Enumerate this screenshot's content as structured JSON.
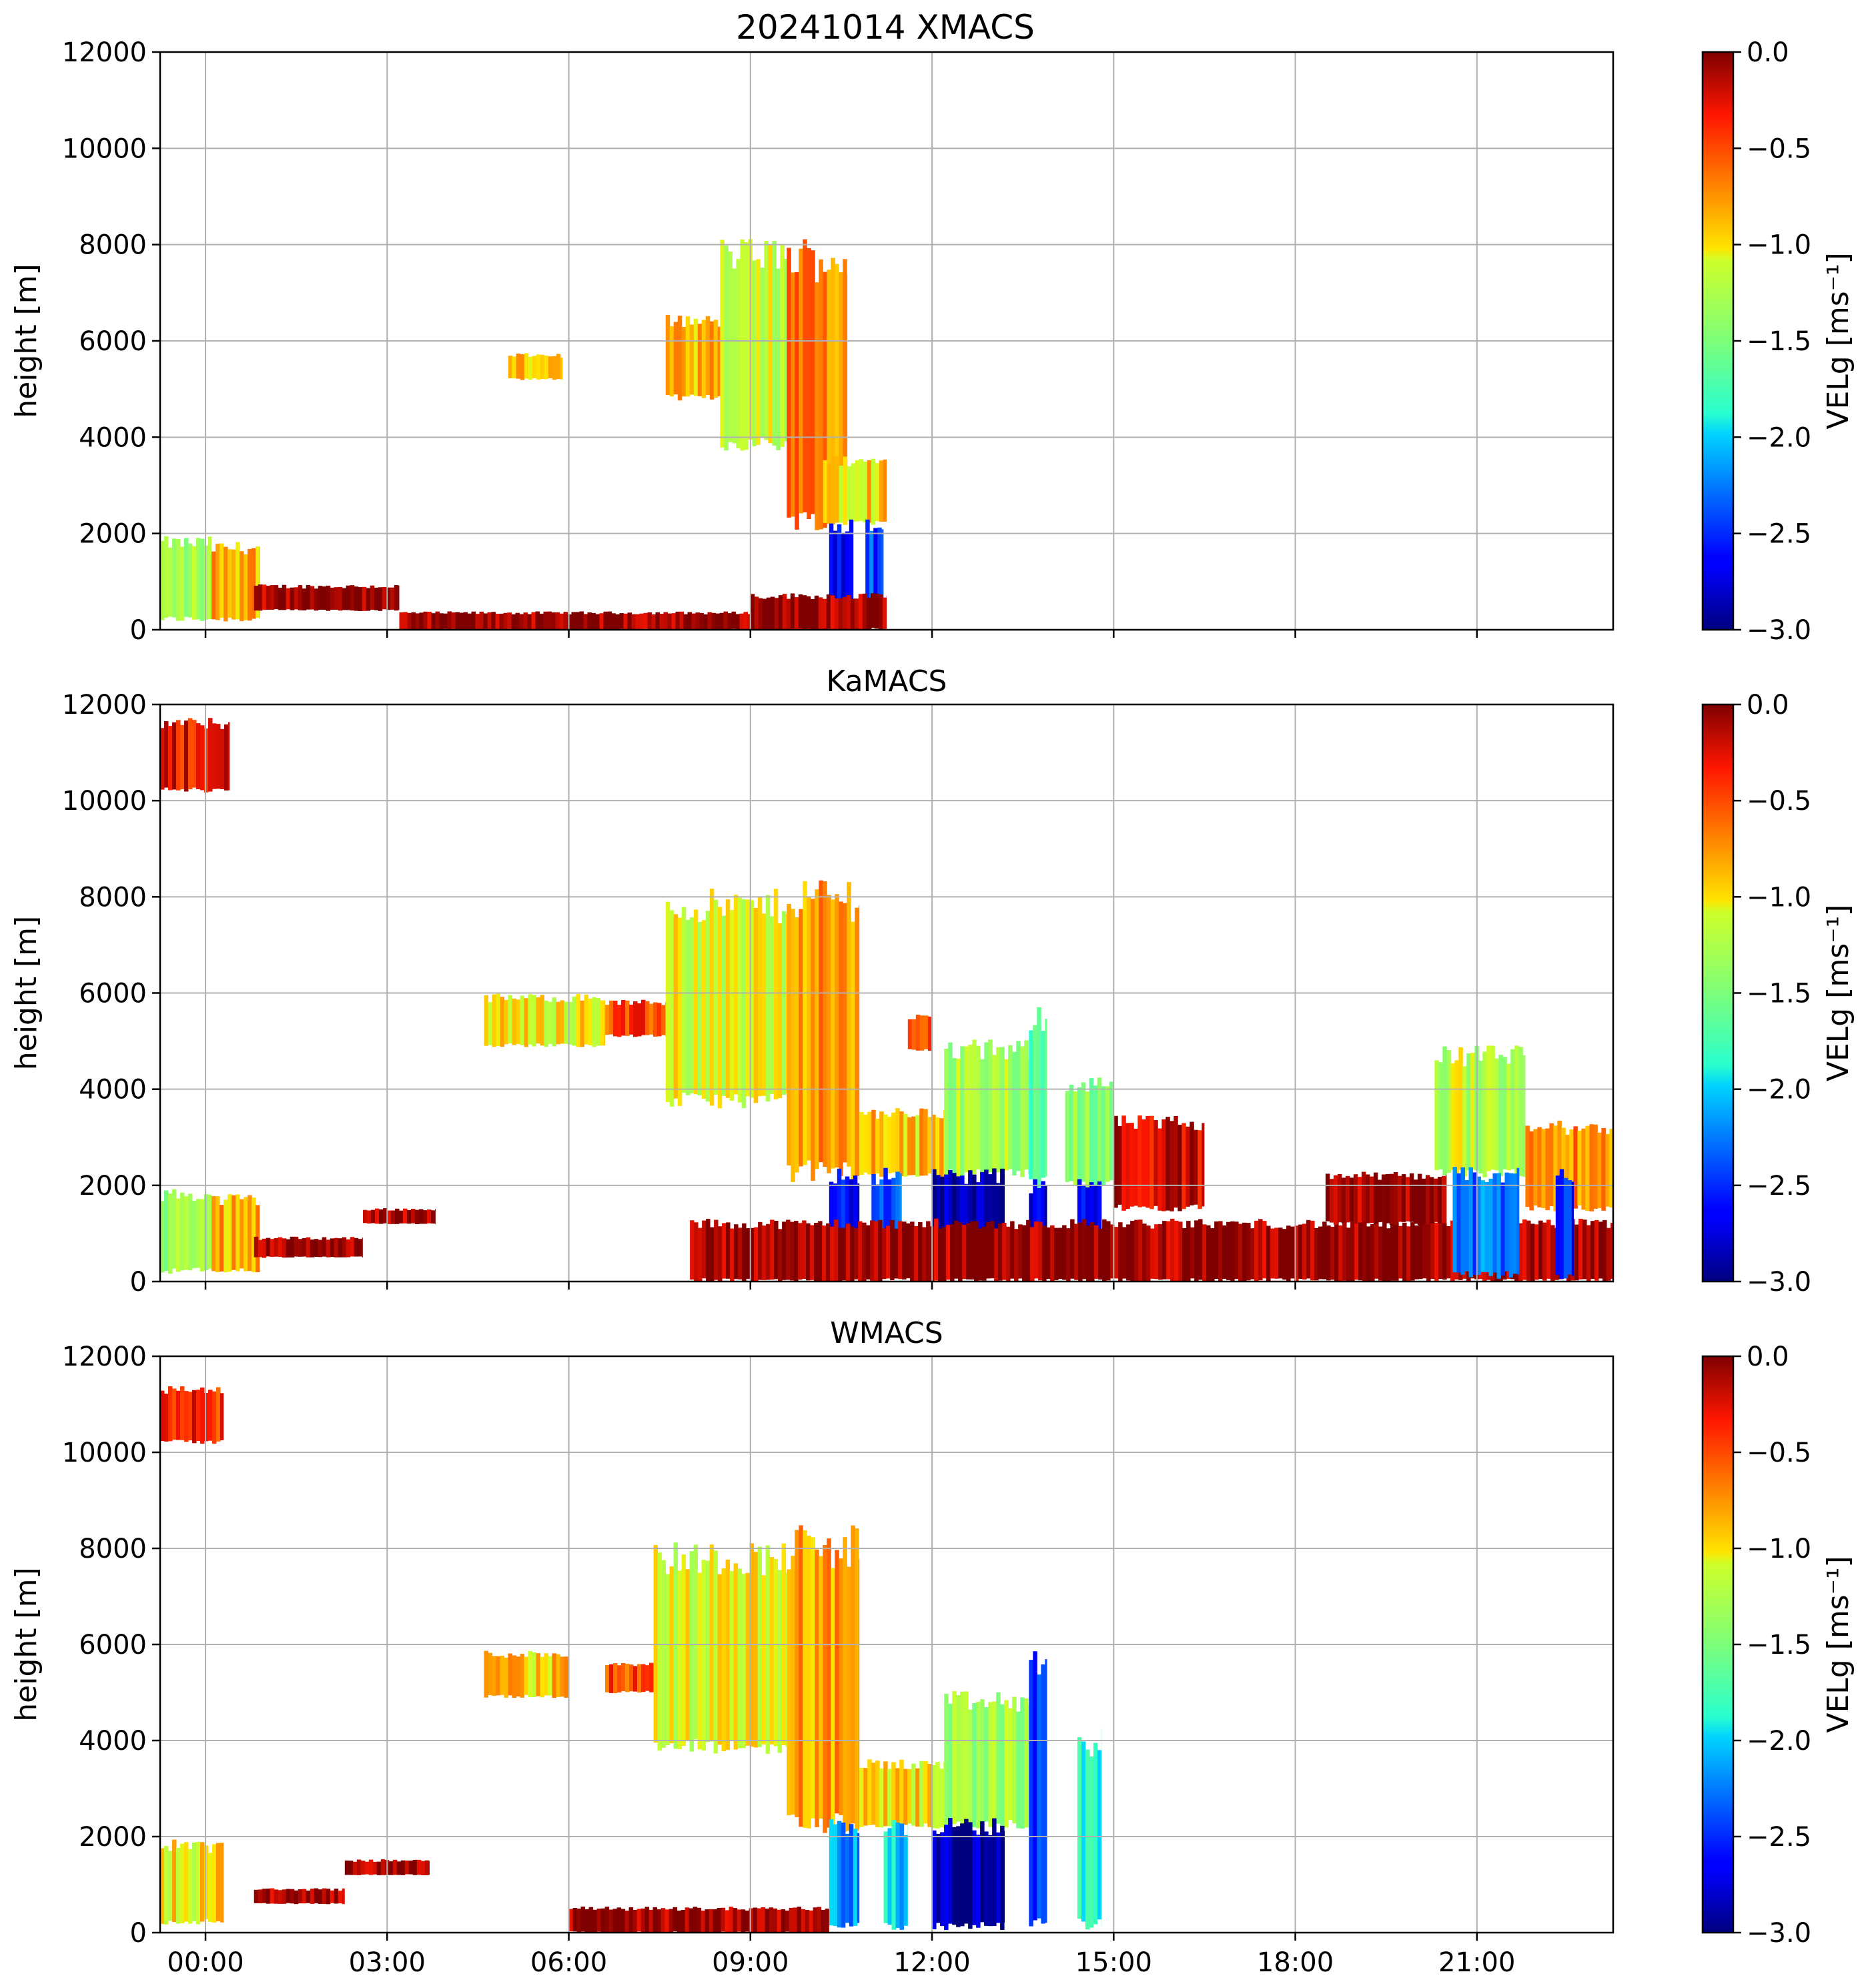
{
  "figure": {
    "suptitle": "20241014 XMACS"
  },
  "chart_data": [
    {
      "type": "heatmap",
      "instrument": "XMACS",
      "title": "20241014 XMACS",
      "xlabel": "",
      "ylabel": "height [m]",
      "ylim": [
        0,
        12000
      ],
      "yticks": [
        "0",
        "2000",
        "4000",
        "6000",
        "8000",
        "10000",
        "12000"
      ],
      "xlim_hours": [
        -0.75,
        23.25
      ],
      "xticks": [],
      "grid": true,
      "colorbar": {
        "label": "VELg [ms⁻¹]",
        "vmin": -3.0,
        "vmax": 0.0,
        "cmap": "jet",
        "ticks": [
          "0.0",
          "−0.5",
          "−1.0",
          "−1.5",
          "−2.0",
          "−2.5",
          "−3.0"
        ]
      },
      "regions": [
        {
          "t0": -0.75,
          "t1": 0.1,
          "h0": 200,
          "h1": 1800,
          "v": -1.3
        },
        {
          "t0": 0.1,
          "t1": 0.9,
          "h0": 200,
          "h1": 1700,
          "v": -0.8
        },
        {
          "t0": 0.8,
          "t1": 3.2,
          "h0": 400,
          "h1": 900,
          "v": -0.05
        },
        {
          "t0": 3.2,
          "t1": 11.0,
          "h0": 0,
          "h1": 350,
          "v": -0.05
        },
        {
          "t0": 5.0,
          "t1": 5.9,
          "h0": 5200,
          "h1": 5700,
          "v": -0.9
        },
        {
          "t0": 7.6,
          "t1": 8.5,
          "h0": 4800,
          "h1": 6400,
          "v": -0.9
        },
        {
          "t0": 8.5,
          "t1": 9.6,
          "h0": 3800,
          "h1": 7800,
          "v": -1.2
        },
        {
          "t0": 9.6,
          "t1": 10.6,
          "h0": 2200,
          "h1": 7700,
          "v": -0.7
        },
        {
          "t0": 10.2,
          "t1": 11.25,
          "h0": 2200,
          "h1": 3500,
          "v": -0.9
        },
        {
          "t0": 10.3,
          "t1": 10.7,
          "h0": 100,
          "h1": 2200,
          "v": -2.6
        },
        {
          "t0": 10.9,
          "t1": 11.2,
          "h0": 100,
          "h1": 2200,
          "v": -2.4
        },
        {
          "t0": 9.0,
          "t1": 11.25,
          "h0": 0,
          "h1": 700,
          "v": -0.05
        }
      ]
    },
    {
      "type": "heatmap",
      "instrument": "KaMACS",
      "title": "KaMACS",
      "xlabel": "",
      "ylabel": "height [m]",
      "ylim": [
        0,
        12000
      ],
      "yticks": [
        "0",
        "2000",
        "4000",
        "6000",
        "8000",
        "10000",
        "12000"
      ],
      "xlim_hours": [
        -0.75,
        23.25
      ],
      "xticks": [],
      "grid": true,
      "colorbar": {
        "label": "VELg [ms⁻¹]",
        "vmin": -3.0,
        "vmax": 0.0,
        "cmap": "jet",
        "ticks": [
          "0.0",
          "−0.5",
          "−1.0",
          "−1.5",
          "−2.0",
          "−2.5",
          "−3.0"
        ]
      },
      "regions": [
        {
          "t0": -0.75,
          "t1": 0.4,
          "h0": 10200,
          "h1": 11600,
          "v": -0.3
        },
        {
          "t0": -0.75,
          "t1": 0.1,
          "h0": 200,
          "h1": 1800,
          "v": -1.3
        },
        {
          "t0": 0.1,
          "t1": 0.9,
          "h0": 200,
          "h1": 1700,
          "v": -0.8
        },
        {
          "t0": 0.8,
          "t1": 2.6,
          "h0": 500,
          "h1": 900,
          "v": -0.05
        },
        {
          "t0": 2.6,
          "t1": 3.8,
          "h0": 1200,
          "h1": 1500,
          "v": -0.05
        },
        {
          "t0": 4.6,
          "t1": 6.6,
          "h0": 4900,
          "h1": 5900,
          "v": -1.0
        },
        {
          "t0": 6.6,
          "t1": 7.6,
          "h0": 5100,
          "h1": 5800,
          "v": -0.5
        },
        {
          "t0": 7.6,
          "t1": 9.6,
          "h0": 3700,
          "h1": 7800,
          "v": -1.1
        },
        {
          "t0": 9.6,
          "t1": 10.8,
          "h0": 2200,
          "h1": 8000,
          "v": -0.8
        },
        {
          "t0": 10.8,
          "t1": 12.2,
          "h0": 2200,
          "h1": 3500,
          "v": -0.9
        },
        {
          "t0": 11.6,
          "t1": 12.0,
          "h0": 4800,
          "h1": 5500,
          "v": -0.4
        },
        {
          "t0": 12.2,
          "t1": 13.6,
          "h0": 2200,
          "h1": 4800,
          "v": -1.3
        },
        {
          "t0": 13.6,
          "t1": 13.9,
          "h0": 2000,
          "h1": 5500,
          "v": -1.7
        },
        {
          "t0": 14.2,
          "t1": 15.0,
          "h0": 2000,
          "h1": 4100,
          "v": -1.4
        },
        {
          "t0": 15.0,
          "t1": 16.5,
          "h0": 1500,
          "h1": 3300,
          "v": -0.2
        },
        {
          "t0": 10.3,
          "t1": 10.8,
          "h0": 100,
          "h1": 2200,
          "v": -2.6
        },
        {
          "t0": 11.0,
          "t1": 11.5,
          "h0": 100,
          "h1": 2200,
          "v": -2.4
        },
        {
          "t0": 12.0,
          "t1": 13.2,
          "h0": 100,
          "h1": 2200,
          "v": -2.9
        },
        {
          "t0": 13.6,
          "t1": 13.9,
          "h0": 100,
          "h1": 2000,
          "v": -2.8
        },
        {
          "t0": 14.4,
          "t1": 14.8,
          "h0": 100,
          "h1": 2000,
          "v": -2.6
        },
        {
          "t0": 8.0,
          "t1": 23.25,
          "h0": 0,
          "h1": 1200,
          "v": -0.05
        },
        {
          "t0": 18.5,
          "t1": 20.5,
          "h0": 1200,
          "h1": 2200,
          "v": -0.05
        },
        {
          "t0": 20.3,
          "t1": 21.8,
          "h0": 2200,
          "h1": 4700,
          "v": -1.2
        },
        {
          "t0": 20.6,
          "t1": 21.7,
          "h0": 100,
          "h1": 2200,
          "v": -2.3
        },
        {
          "t0": 21.8,
          "t1": 23.25,
          "h0": 1500,
          "h1": 3200,
          "v": -0.7
        },
        {
          "t0": 22.3,
          "t1": 22.6,
          "h0": 100,
          "h1": 2200,
          "v": -2.6
        }
      ]
    },
    {
      "type": "heatmap",
      "instrument": "WMACS",
      "title": "WMACS",
      "xlabel": "",
      "ylabel": "height [m]",
      "ylim": [
        0,
        12000
      ],
      "yticks": [
        "0",
        "2000",
        "4000",
        "6000",
        "8000",
        "10000",
        "12000"
      ],
      "xlim_hours": [
        -0.75,
        23.25
      ],
      "xticks": [
        "00:00",
        "03:00",
        "06:00",
        "09:00",
        "12:00",
        "15:00",
        "18:00",
        "21:00"
      ],
      "grid": true,
      "colorbar": {
        "label": "VELg [ms⁻¹]",
        "vmin": -3.0,
        "vmax": 0.0,
        "cmap": "jet",
        "ticks": [
          "0.0",
          "−0.5",
          "−1.0",
          "−1.5",
          "−2.0",
          "−2.5",
          "−3.0"
        ]
      },
      "regions": [
        {
          "t0": -0.75,
          "t1": 0.3,
          "h0": 10200,
          "h1": 11300,
          "v": -0.4
        },
        {
          "t0": -0.75,
          "t1": 0.3,
          "h0": 200,
          "h1": 1800,
          "v": -1.0
        },
        {
          "t0": 0.8,
          "t1": 2.3,
          "h0": 600,
          "h1": 900,
          "v": -0.05
        },
        {
          "t0": 2.3,
          "t1": 3.7,
          "h0": 1200,
          "h1": 1500,
          "v": -0.05
        },
        {
          "t0": 4.6,
          "t1": 6.0,
          "h0": 4900,
          "h1": 5800,
          "v": -0.9
        },
        {
          "t0": 6.6,
          "t1": 7.4,
          "h0": 5000,
          "h1": 5600,
          "v": -0.5
        },
        {
          "t0": 7.4,
          "t1": 9.6,
          "h0": 3800,
          "h1": 7800,
          "v": -1.1
        },
        {
          "t0": 9.6,
          "t1": 10.8,
          "h0": 2200,
          "h1": 8000,
          "v": -0.8
        },
        {
          "t0": 10.8,
          "t1": 12.2,
          "h0": 2200,
          "h1": 3500,
          "v": -1.0
        },
        {
          "t0": 12.2,
          "t1": 13.6,
          "h0": 2200,
          "h1": 4800,
          "v": -1.3
        },
        {
          "t0": 10.3,
          "t1": 10.8,
          "h0": 100,
          "h1": 2200,
          "v": -2.2
        },
        {
          "t0": 11.2,
          "t1": 11.6,
          "h0": 100,
          "h1": 2200,
          "v": -2.0
        },
        {
          "t0": 12.0,
          "t1": 13.2,
          "h0": 100,
          "h1": 2200,
          "v": -2.9
        },
        {
          "t0": 13.6,
          "t1": 13.9,
          "h0": 100,
          "h1": 5500,
          "v": -2.5
        },
        {
          "t0": 14.4,
          "t1": 14.8,
          "h0": 100,
          "h1": 4000,
          "v": -1.8
        },
        {
          "t0": 6.0,
          "t1": 10.3,
          "h0": 0,
          "h1": 500,
          "v": -0.05
        }
      ]
    }
  ]
}
